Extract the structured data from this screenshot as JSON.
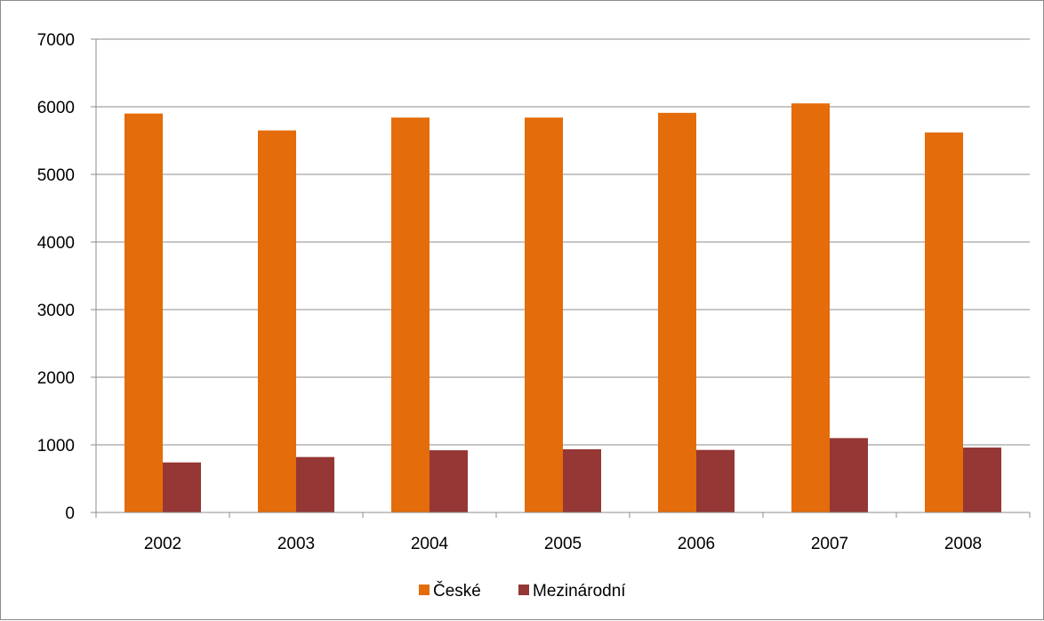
{
  "chart_data": {
    "type": "bar",
    "title": "",
    "xlabel": "",
    "ylabel": "",
    "categories": [
      "2002",
      "2003",
      "2004",
      "2005",
      "2006",
      "2007",
      "2008"
    ],
    "series": [
      {
        "name": "České",
        "color": "#e46c0a",
        "values": [
          5900,
          5650,
          5840,
          5840,
          5910,
          6050,
          5620
        ]
      },
      {
        "name": "Mezinárodní",
        "color": "#953735",
        "values": [
          740,
          820,
          920,
          935,
          925,
          1100,
          960
        ]
      }
    ],
    "ylim": [
      0,
      7000
    ],
    "yticks": [
      "0",
      "1000",
      "2000",
      "3000",
      "4000",
      "5000",
      "6000",
      "7000"
    ],
    "grid": "horizontal",
    "legend_position": "bottom"
  }
}
